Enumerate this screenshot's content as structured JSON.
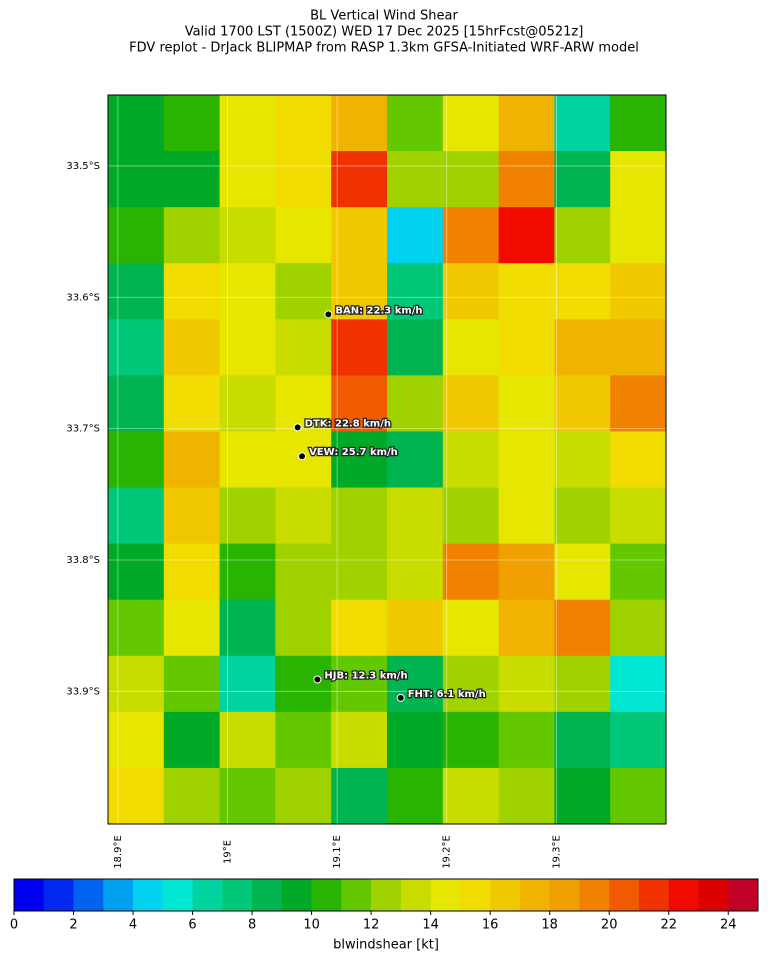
{
  "title": [
    "BL Vertical Wind Shear",
    "Valid 1700 LST (1500Z) WED 17 Dec 2025 [15hrFcst@0521z]",
    "FDV replot - DrJack BLIPMAP from RASP 1.3km GFSA-Initiated WRF-ARW model"
  ],
  "map": {
    "xlim": [
      18.891,
      19.4
    ],
    "ylim": [
      -34.001,
      -33.446
    ],
    "xticks": [
      {
        "value": 18.9,
        "label": "18.9°E"
      },
      {
        "value": 19.0,
        "label": "19°E"
      },
      {
        "value": 19.1,
        "label": "19.1°E"
      },
      {
        "value": 19.2,
        "label": "19.2°E"
      },
      {
        "value": 19.3,
        "label": "19.3°E"
      }
    ],
    "yticks": [
      {
        "value": -33.5,
        "label": "33.5°S"
      },
      {
        "value": -33.6,
        "label": "33.6°S"
      },
      {
        "value": -33.7,
        "label": "33.7°S"
      },
      {
        "value": -33.8,
        "label": "33.8°S"
      },
      {
        "value": -33.9,
        "label": "33.9°S"
      }
    ],
    "grid": [
      [
        9,
        10,
        14,
        15,
        17,
        11,
        14,
        17,
        6,
        10
      ],
      [
        9,
        9,
        14,
        15,
        21,
        12,
        12,
        19,
        8,
        14
      ],
      [
        10,
        12,
        13,
        14,
        16,
        4,
        19,
        22,
        12,
        14
      ],
      [
        8,
        15,
        14,
        12,
        16,
        7,
        16,
        15,
        15,
        16
      ],
      [
        7,
        16,
        14,
        13,
        21,
        8,
        14,
        15,
        17,
        17
      ],
      [
        8,
        15,
        13,
        14,
        20,
        12,
        16,
        14,
        16,
        19
      ],
      [
        10,
        17,
        14,
        14,
        9,
        8,
        13,
        14,
        13,
        15
      ],
      [
        7,
        16,
        12,
        13,
        12,
        13,
        12,
        14,
        12,
        13
      ],
      [
        9,
        15,
        10,
        12,
        12,
        13,
        19,
        18,
        14,
        11
      ],
      [
        11,
        14,
        8,
        12,
        15,
        16,
        14,
        17,
        19,
        12
      ],
      [
        13,
        11,
        6,
        10,
        11,
        8,
        12,
        13,
        12,
        5
      ],
      [
        14,
        9,
        13,
        11,
        13,
        9,
        10,
        11,
        8,
        7
      ],
      [
        15,
        12,
        11,
        12,
        8,
        10,
        13,
        12,
        9,
        11
      ]
    ],
    "stations": [
      {
        "lon": 19.092,
        "lat": -33.613,
        "label": "BAN: 22.3 km/h"
      },
      {
        "lon": 19.064,
        "lat": -33.699,
        "label": "DTK: 22.8 km/h"
      },
      {
        "lon": 19.068,
        "lat": -33.721,
        "label": "VEW: 25.7 km/h"
      },
      {
        "lon": 19.082,
        "lat": -33.891,
        "label": "HJB: 12.3 km/h"
      },
      {
        "lon": 19.158,
        "lat": -33.905,
        "label": "FHT: 6.1 km/h"
      }
    ]
  },
  "colorbar": {
    "label": "blwindshear [kt]",
    "lim": [
      0,
      25
    ],
    "ticks": [
      0,
      2,
      4,
      6,
      8,
      10,
      12,
      14,
      16,
      18,
      20,
      22,
      24
    ],
    "colors": [
      "#0000f0",
      "#0028f0",
      "#0064f0",
      "#00a0f0",
      "#00d2f0",
      "#00e6d2",
      "#00d2a0",
      "#00c878",
      "#00b450",
      "#00aa28",
      "#28b400",
      "#64c800",
      "#a0d200",
      "#c8dc00",
      "#e6e600",
      "#f0dc00",
      "#f0c800",
      "#f0b400",
      "#f0a000",
      "#f08200",
      "#f05a00",
      "#f03200",
      "#f00a00",
      "#dc0000",
      "#c00028"
    ]
  }
}
